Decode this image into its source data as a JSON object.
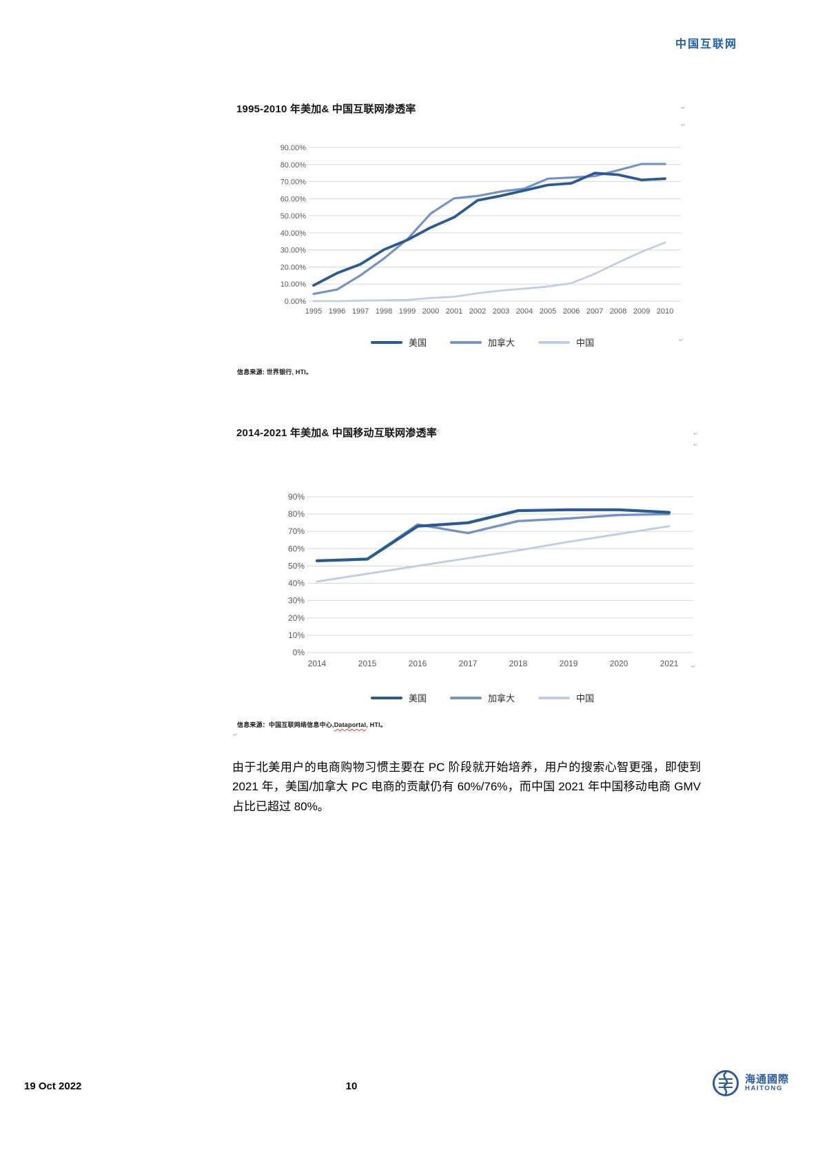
{
  "header": {
    "brand": "中国互联网"
  },
  "colors": {
    "us": "#2a5a96",
    "canada": "#7592c8",
    "china": "#bfcde7",
    "grid": "#d9d9d9",
    "axis_label": "#595959",
    "brand_blue": "#1c5eb0",
    "logo_blue": "#2b5aa5"
  },
  "artifacts": {
    "mark": "↵"
  },
  "chart_data": [
    {
      "type": "line",
      "title": "1995-2010 年美加& 中国互联网渗透率",
      "source": "信息来源: 世界银行, HTI。",
      "x": [
        1995,
        1996,
        1997,
        1998,
        1999,
        2000,
        2001,
        2002,
        2003,
        2004,
        2005,
        2006,
        2007,
        2008,
        2009,
        2010
      ],
      "series": [
        {
          "name": "美国",
          "color_key": "us",
          "values": [
            9.2,
            16.4,
            21.6,
            30.1,
            35.8,
            43.1,
            49.1,
            59.0,
            61.7,
            64.8,
            68.0,
            69.0,
            75.0,
            74.0,
            71.0,
            71.7
          ]
        },
        {
          "name": "加拿大",
          "color_key": "canada",
          "values": [
            4.2,
            6.8,
            15.1,
            24.9,
            36.2,
            51.3,
            60.2,
            61.6,
            64.2,
            65.9,
            71.7,
            72.4,
            73.2,
            76.7,
            80.3,
            80.3
          ]
        },
        {
          "name": "中国",
          "color_key": "china",
          "values": [
            0.0,
            0.0,
            0.3,
            0.5,
            0.7,
            1.8,
            2.6,
            4.6,
            6.2,
            7.3,
            8.5,
            10.5,
            16.0,
            22.6,
            28.9,
            34.3
          ]
        }
      ],
      "ylim": [
        0,
        90
      ],
      "ytick_step": 10,
      "ytick_format": "percent2",
      "grid": "horizontal",
      "legend_position": "bottom"
    },
    {
      "type": "line",
      "title": "2014-2021 年美加& 中国移动互联网渗透率",
      "source_prefix": "信息来源：中国互联网络信息中心,",
      "source_flagged": "Dataportal",
      "source_suffix": ", HTI。",
      "x": [
        2014,
        2015,
        2016,
        2017,
        2018,
        2019,
        2020,
        2021
      ],
      "series": [
        {
          "name": "美国",
          "color_key": "us",
          "values": [
            53,
            54,
            73,
            75,
            82,
            82.5,
            82.5,
            81
          ]
        },
        {
          "name": "加拿大",
          "color_key": "canada",
          "values": [
            53,
            54,
            74,
            69,
            76,
            77.5,
            79.5,
            80
          ]
        },
        {
          "name": "中国",
          "color_key": "china",
          "values": [
            41,
            45.5,
            50,
            54.5,
            59,
            64,
            68.5,
            73
          ]
        }
      ],
      "ylim": [
        0,
        90
      ],
      "ytick_step": 10,
      "ytick_format": "percent0",
      "grid": "horizontal",
      "legend_position": "bottom"
    }
  ],
  "paragraph": {
    "text": "由于北美用户的电商购物习惯主要在 PC 阶段就开始培养，用户的搜索心智更强，即使到 2021 年，美国/加拿大 PC 电商的贡献仍有 60%/76%，而中国 2021 年中国移动电商 GMV 占比已超过 80%。"
  },
  "footer": {
    "date": "19 Oct 2022",
    "page_number": "10",
    "logo_cn": "海通國際",
    "logo_en": "HAITONG"
  }
}
